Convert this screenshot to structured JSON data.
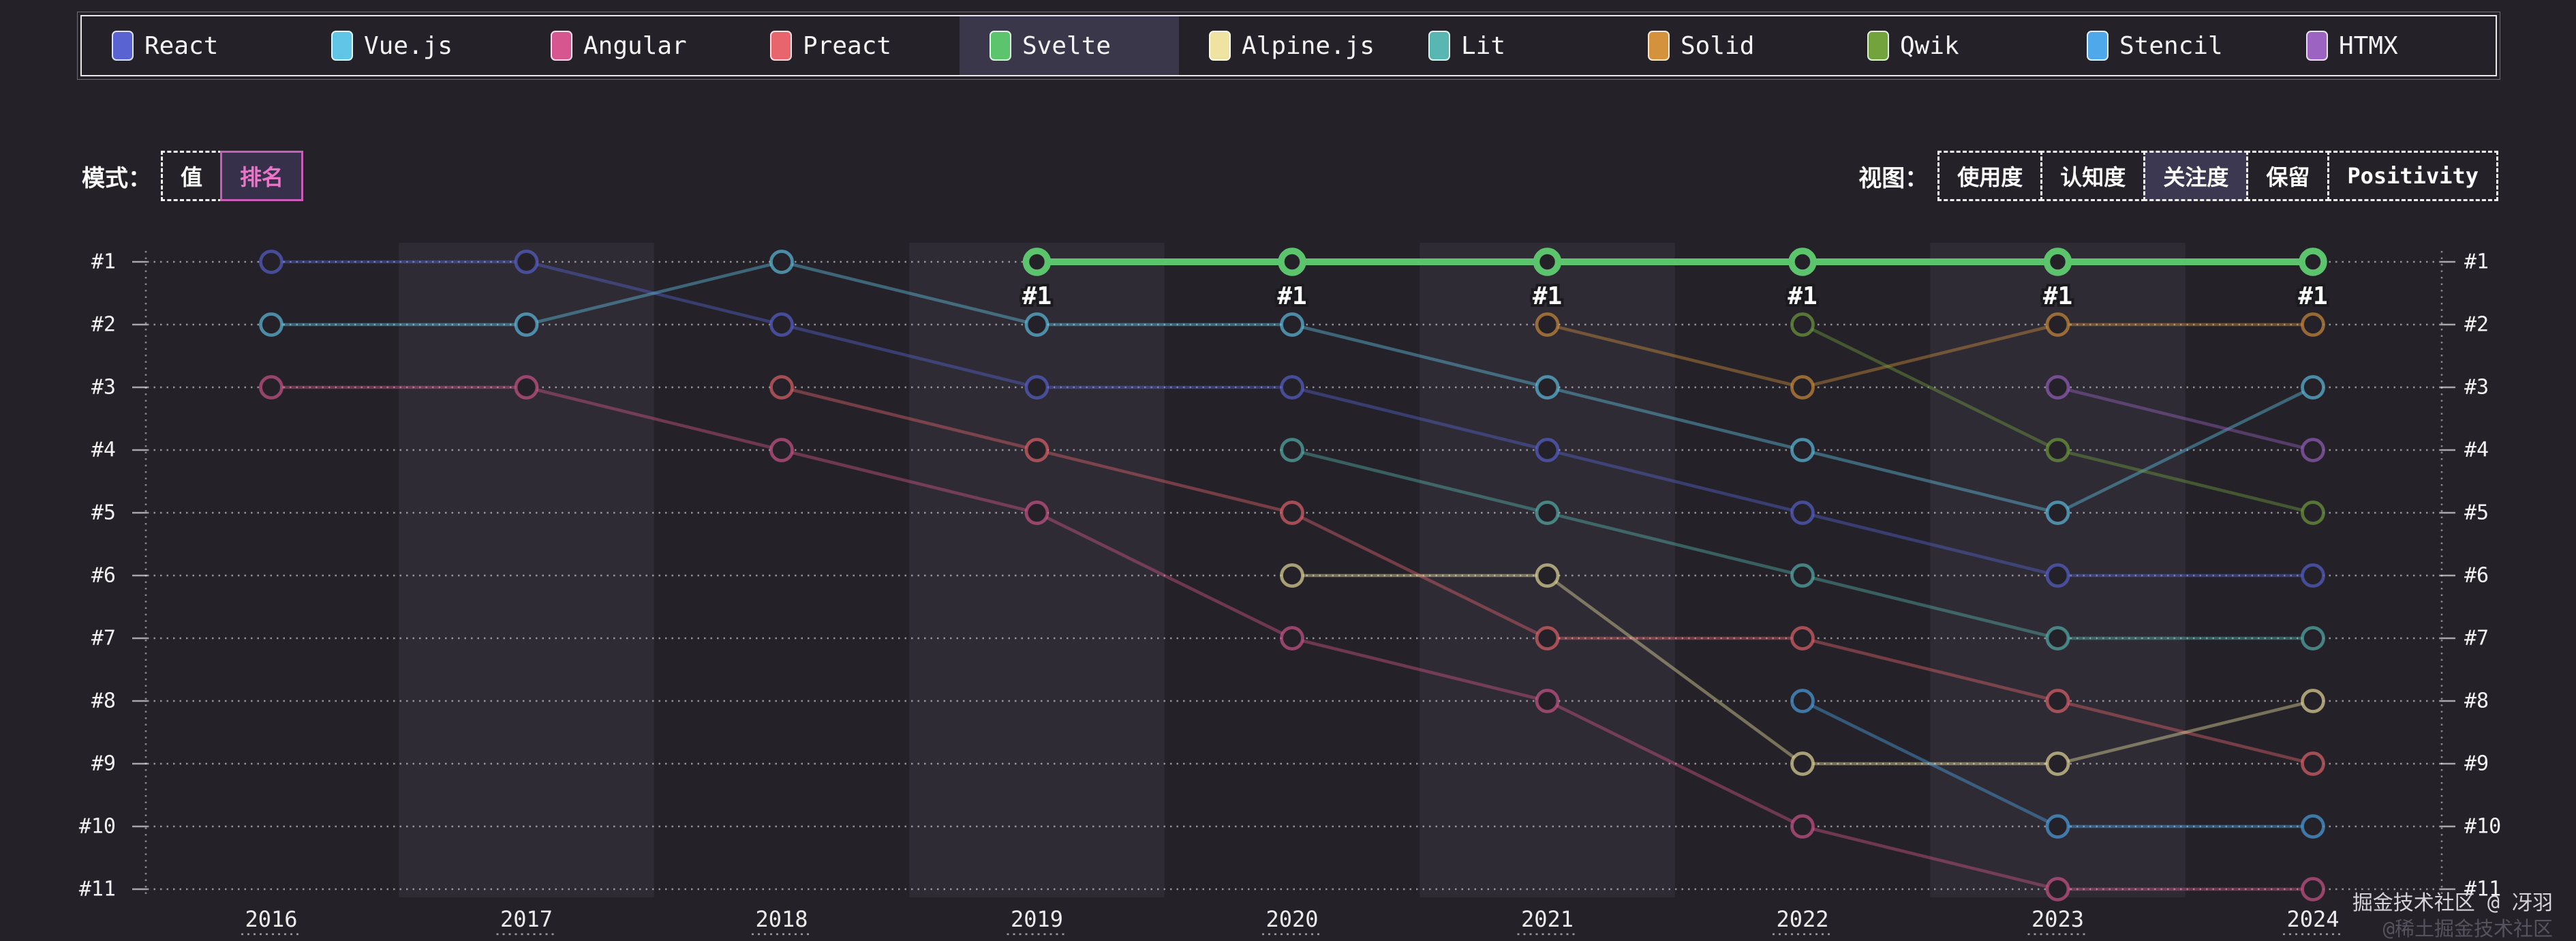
{
  "legend": {
    "items": [
      {
        "label": "React",
        "color": "#5964d2"
      },
      {
        "label": "Vue.js",
        "color": "#61c5e8"
      },
      {
        "label": "Angular",
        "color": "#d6578f"
      },
      {
        "label": "Preact",
        "color": "#e8656d"
      },
      {
        "label": "Svelte",
        "color": "#5dc46e",
        "highlighted": true
      },
      {
        "label": "Alpine.js",
        "color": "#efe3a2"
      },
      {
        "label": "Lit",
        "color": "#58b7b0"
      },
      {
        "label": "Solid",
        "color": "#d5923c"
      },
      {
        "label": "Qwik",
        "color": "#73a33d"
      },
      {
        "label": "Stencil",
        "color": "#4fa8ea"
      },
      {
        "label": "HTMX",
        "color": "#9d63c3"
      }
    ]
  },
  "controls": {
    "mode_label": "模式：",
    "mode_options": [
      {
        "label": "值",
        "active": false
      },
      {
        "label": "排名",
        "active": true
      }
    ],
    "view_label": "视图：",
    "view_options": [
      {
        "label": "使用度",
        "active": false
      },
      {
        "label": "认知度",
        "active": false
      },
      {
        "label": "关注度",
        "active": true
      },
      {
        "label": "保留",
        "active": false
      },
      {
        "label": "Positivity",
        "active": false
      }
    ],
    "active_mode_color": "#ea76c9"
  },
  "chart_data": {
    "type": "line",
    "subtype": "bump-ranking",
    "x": [
      "2016",
      "2017",
      "2018",
      "2019",
      "2020",
      "2021",
      "2022",
      "2023",
      "2024"
    ],
    "rank_labels": [
      "#1",
      "#2",
      "#3",
      "#4",
      "#5",
      "#6",
      "#7",
      "#8",
      "#9",
      "#10",
      "#11"
    ],
    "ylim": [
      1,
      11
    ],
    "y_inverted": true,
    "grid": "dotted-horizontal",
    "legend_position": "top",
    "banded_years": [
      "2017",
      "2019",
      "2021",
      "2023"
    ],
    "series": [
      {
        "name": "React",
        "color": "#5964d2",
        "ranks": [
          1,
          1,
          2,
          3,
          3,
          4,
          5,
          6,
          6
        ]
      },
      {
        "name": "Vue.js",
        "color": "#61c5e8",
        "ranks": [
          2,
          2,
          1,
          2,
          2,
          3,
          4,
          5,
          3
        ]
      },
      {
        "name": "Angular",
        "color": "#d6578f",
        "ranks": [
          3,
          3,
          4,
          5,
          7,
          8,
          10,
          11,
          11
        ]
      },
      {
        "name": "Preact",
        "color": "#e8656d",
        "ranks": [
          null,
          null,
          3,
          4,
          5,
          7,
          7,
          8,
          9
        ]
      },
      {
        "name": "Svelte",
        "color": "#5dc46e",
        "ranks": [
          null,
          null,
          null,
          1,
          1,
          1,
          1,
          1,
          1
        ],
        "highlight": true,
        "point_label": "#1"
      },
      {
        "name": "Alpine.js",
        "color": "#efe3a2",
        "ranks": [
          null,
          null,
          null,
          null,
          6,
          6,
          9,
          9,
          8
        ]
      },
      {
        "name": "Lit",
        "color": "#58b7b0",
        "ranks": [
          null,
          null,
          null,
          null,
          4,
          5,
          6,
          7,
          7
        ]
      },
      {
        "name": "Solid",
        "color": "#d5923c",
        "ranks": [
          null,
          null,
          null,
          null,
          null,
          2,
          3,
          2,
          2
        ]
      },
      {
        "name": "Qwik",
        "color": "#73a33d",
        "ranks": [
          null,
          null,
          null,
          null,
          null,
          null,
          2,
          4,
          5
        ]
      },
      {
        "name": "Stencil",
        "color": "#4fa8ea",
        "ranks": [
          null,
          null,
          null,
          null,
          null,
          null,
          8,
          10,
          10
        ]
      },
      {
        "name": "HTMX",
        "color": "#9d63c3",
        "ranks": [
          null,
          null,
          null,
          null,
          null,
          null,
          null,
          3,
          4
        ]
      }
    ]
  },
  "watermark": {
    "line1": "掘金技术社区 @ 冴羽",
    "line2": "@稀土掘金技术社区"
  }
}
